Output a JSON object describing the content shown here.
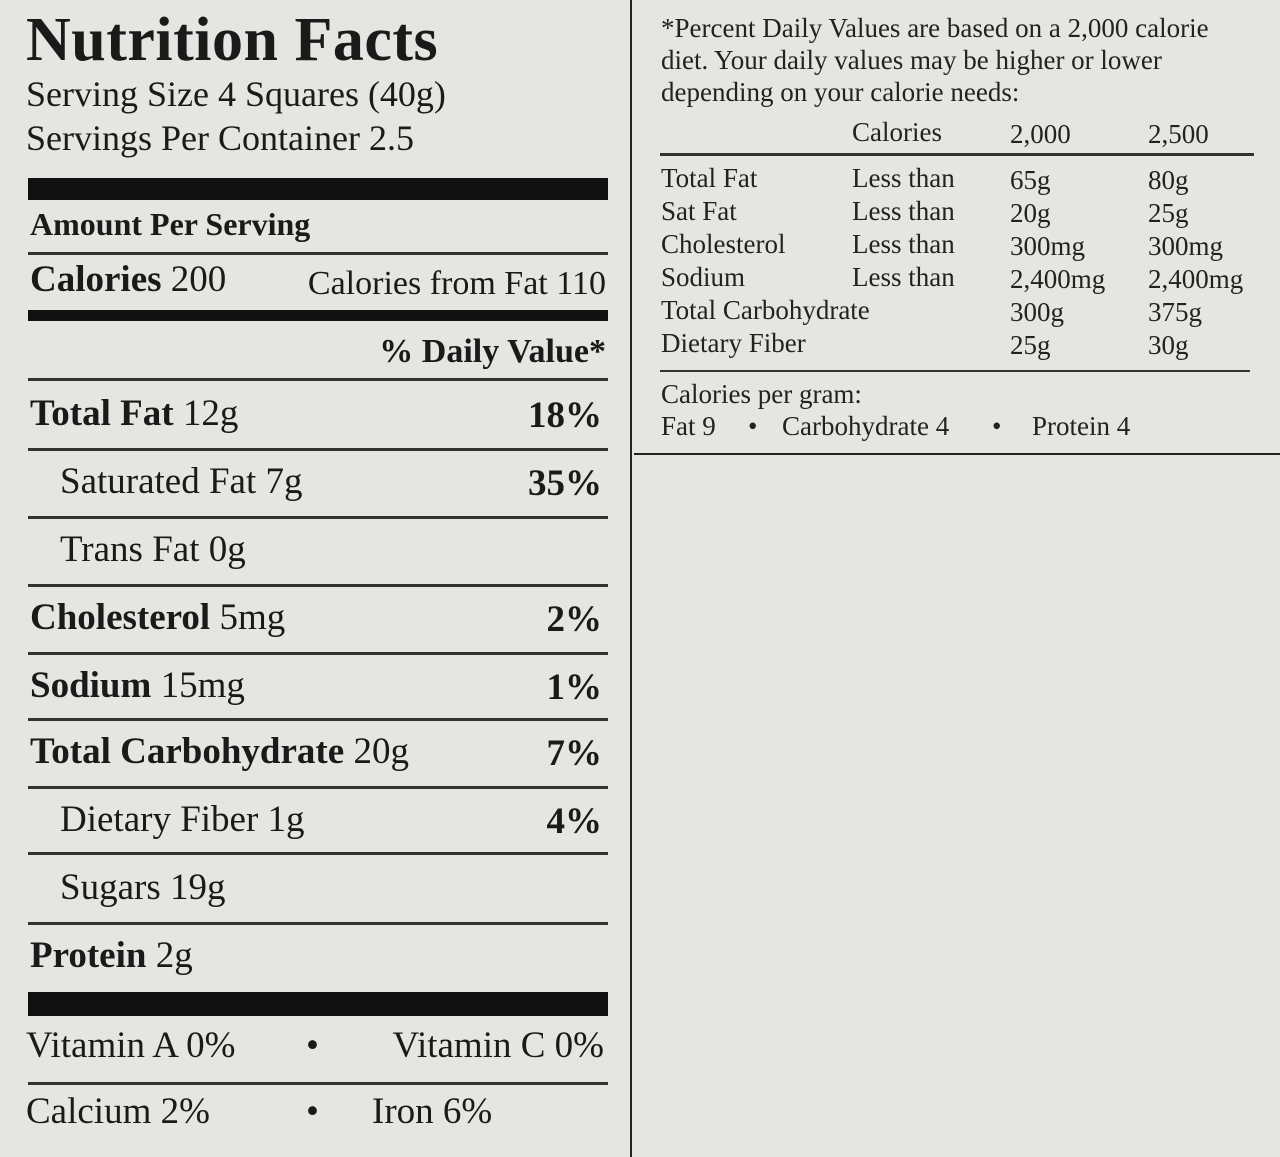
{
  "label": {
    "title": "Nutrition Facts",
    "serving_size": "Serving Size 4 Squares (40g)",
    "servings_per_container": "Servings Per Container 2.5",
    "amount_per_serving": "Amount Per Serving",
    "calories_label": "Calories",
    "calories_value": "200",
    "calories_from_fat": "Calories from Fat 110",
    "daily_value_header": "% Daily Value*",
    "nutrients": [
      {
        "name": "Total Fat",
        "amount": "12g",
        "pct": "18%"
      },
      {
        "name": "Saturated Fat",
        "amount": "7g",
        "pct": "35%"
      },
      {
        "name": "Trans Fat",
        "amount": "0g",
        "pct": ""
      },
      {
        "name": "Cholesterol",
        "amount": "5mg",
        "pct": "2%"
      },
      {
        "name": "Sodium",
        "amount": "15mg",
        "pct": "1%"
      },
      {
        "name": "Total Carbohydrate",
        "amount": "20g",
        "pct": "7%"
      },
      {
        "name": "Dietary Fiber",
        "amount": "1g",
        "pct": "4%"
      },
      {
        "name": "Sugars",
        "amount": "19g",
        "pct": ""
      },
      {
        "name": "Protein",
        "amount": "2g",
        "pct": ""
      }
    ],
    "vitamins": {
      "vitamin_a": "Vitamin A 0%",
      "vitamin_c": "Vitamin C 0%",
      "calcium": "Calcium 2%",
      "iron": "Iron 6%",
      "bullet": "•"
    }
  },
  "footnote": {
    "line1": "*Percent Daily Values are based on a 2,000 calorie",
    "line2": "diet. Your daily values may be higher or lower",
    "line3": "depending on your calorie needs:",
    "header": {
      "calories": "Calories",
      "col1": "2,000",
      "col2": "2,500"
    },
    "rows": [
      {
        "name": "Total Fat",
        "qualifier": "Less than",
        "v1": "65g",
        "v2": "80g"
      },
      {
        "name": "Sat Fat",
        "qualifier": "Less than",
        "v1": "20g",
        "v2": "25g"
      },
      {
        "name": "Cholesterol",
        "qualifier": "Less than",
        "v1": "300mg",
        "v2": "300mg"
      },
      {
        "name": "Sodium",
        "qualifier": "Less than",
        "v1": "2,400mg",
        "v2": "2,400mg"
      },
      {
        "name": "Total Carbohydrate",
        "qualifier": "",
        "v1": "300g",
        "v2": "375g"
      },
      {
        "name": "Dietary Fiber",
        "qualifier": "",
        "v1": "25g",
        "v2": "30g"
      }
    ],
    "calories_per_gram": "Calories per gram:",
    "fat": "Fat 9",
    "carbohydrate": "Carbohydrate 4",
    "protein": "Protein 4",
    "bullet": "•"
  }
}
